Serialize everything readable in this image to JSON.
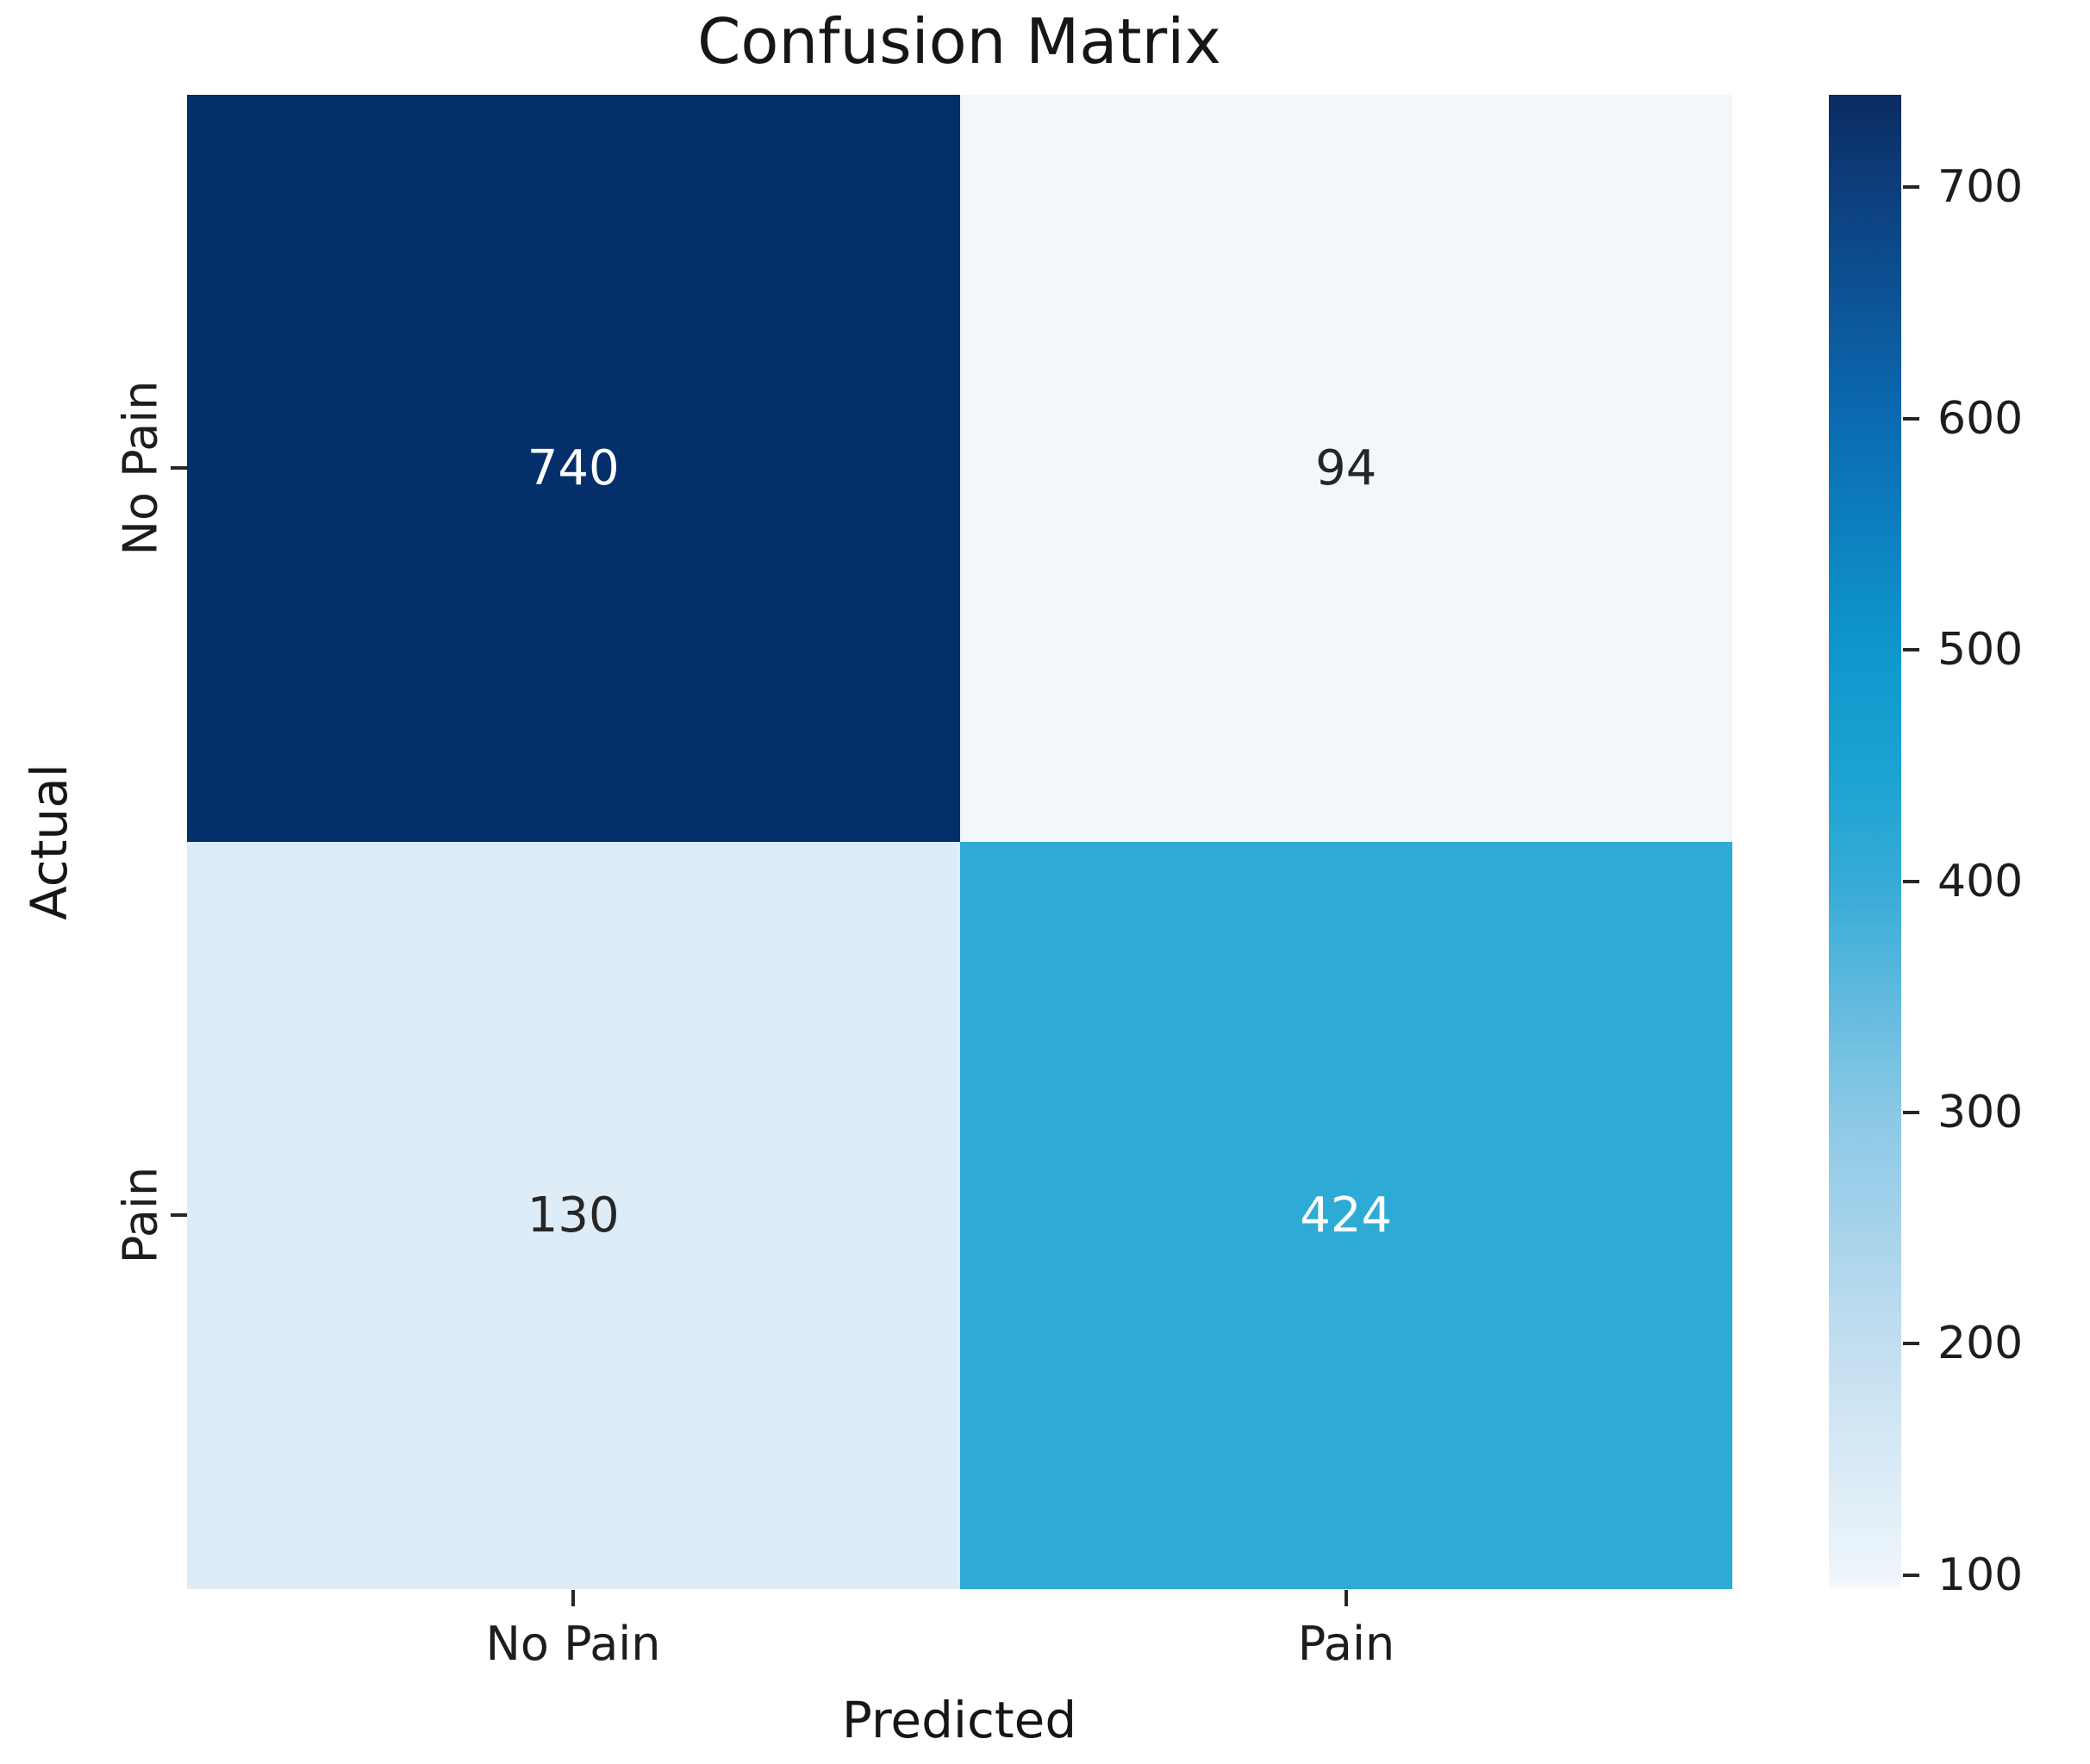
{
  "chart_data": {
    "type": "heatmap",
    "title": "Confusion Matrix",
    "xlabel": "Predicted",
    "ylabel": "Actual",
    "x_categories": [
      "No Pain",
      "Pain"
    ],
    "y_categories": [
      "No Pain",
      "Pain"
    ],
    "matrix": [
      [
        740,
        94
      ],
      [
        130,
        424
      ]
    ],
    "vmin": 94,
    "vmax": 740,
    "colormap": "Blues",
    "grid": false,
    "legend_position": "right-colorbar",
    "cell_colors": [
      [
        "#052f6b",
        "#f2f7fc"
      ],
      [
        "#deecf7",
        "#2dabd6"
      ]
    ],
    "cell_text_colors": [
      [
        "#ffffff",
        "#262626"
      ],
      [
        "#262626",
        "#ffffff"
      ]
    ],
    "colorbar": {
      "ticks": [
        100,
        200,
        300,
        400,
        500,
        600,
        700
      ],
      "gradient": [
        {
          "pos": 0,
          "color": "#f7fbfe"
        },
        {
          "pos": 0.9,
          "color": "#eef5fb"
        },
        {
          "pos": 16.4,
          "color": "#c2def0"
        },
        {
          "pos": 31.9,
          "color": "#8ac8e6"
        },
        {
          "pos": 47.4,
          "color": "#35abd7"
        },
        {
          "pos": 55.1,
          "color": "#1aa2d2"
        },
        {
          "pos": 62.9,
          "color": "#0e97cc"
        },
        {
          "pos": 78.3,
          "color": "#0b6ab1"
        },
        {
          "pos": 93.8,
          "color": "#0d3e7c"
        },
        {
          "pos": 100,
          "color": "#0a2c61"
        }
      ]
    }
  }
}
